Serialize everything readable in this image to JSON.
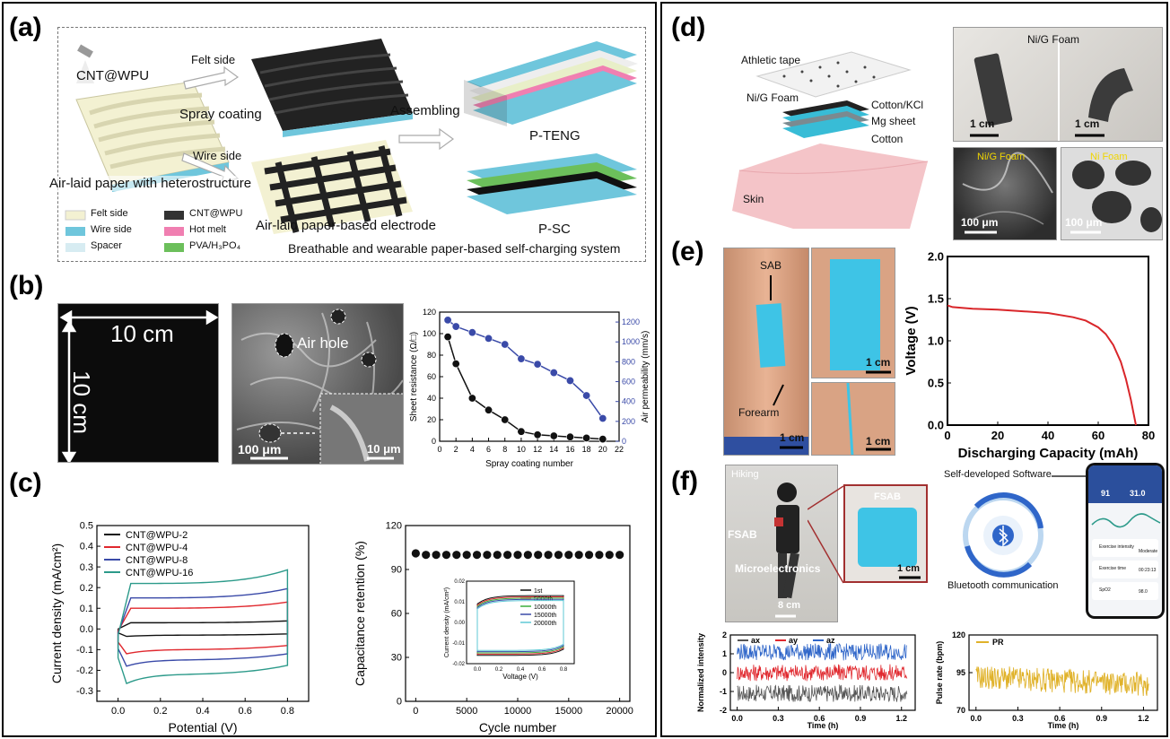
{
  "panels": {
    "a": "(a)",
    "b": "(b)",
    "c": "(c)",
    "d": "(d)",
    "e": "(e)",
    "f": "(f)"
  },
  "a": {
    "cnt_label": "CNT@WPU",
    "felt_side": "Felt side",
    "spray_coating": "Spray coating",
    "wire_side": "Wire side",
    "airlaid_hetero": "Air-laid paper with heterostructure",
    "airlaid_electrode": "Air-laid paper-based electrode",
    "assembling": "Assembling",
    "pteng": "P-TENG",
    "psc": "P-SC",
    "caption": "Breathable and wearable paper-based self-charging system",
    "legend": [
      {
        "label": "Felt side",
        "color": "#f3f1d2"
      },
      {
        "label": "CNT@WPU",
        "color": "#333333"
      },
      {
        "label": "Wire side",
        "color": "#6fc6dc"
      },
      {
        "label": "Hot melt",
        "color": "#f07fb1"
      },
      {
        "label": "Spacer",
        "color": "#d7ecf2"
      },
      {
        "label": "PVA/H₃PO₄",
        "color": "#6cbf5b"
      }
    ]
  },
  "b": {
    "dim_h": "10 cm",
    "dim_v": "10 cm",
    "air_hole": "Air hole",
    "scale_main": "100 μm",
    "scale_inset": "10 μm"
  },
  "d": {
    "athletic_tape": "Athletic tape",
    "nig_foam": "Ni/G Foam",
    "cotton_kcl": "Cotton/KCl",
    "mg_sheet": "Mg sheet",
    "cotton": "Cotton",
    "skin": "Skin",
    "photo_title": "Ni/G Foam",
    "scale_1cm_a": "1 cm",
    "scale_1cm_b": "1 cm",
    "sem_nig": "Ni/G Foam",
    "sem_ni": "Ni Foam",
    "scale_100_a": "100 μm",
    "scale_100_b": "100 μm"
  },
  "e": {
    "sab": "SAB",
    "forearm": "Forearm",
    "scale_a": "1 cm",
    "scale_b": "1 cm",
    "scale_c": "1 cm"
  },
  "f": {
    "hiking": "Hiking",
    "fsab": "FSAB",
    "fsab_zoom": "FSAB",
    "microelectronics": "Microelectronics",
    "scale_8cm": "8 cm",
    "scale_1cm": "1 cm",
    "bluetooth": "Bluetooth communication",
    "software": "Self-developed Software",
    "phone": {
      "hr": "91",
      "temp": "31.0",
      "item1": "Exercise intensity",
      "item1_val": "Moderate",
      "item2": "Exercise time",
      "item2_val": "00:23:13",
      "item3": "SpO2",
      "item3_val": "98.0"
    }
  },
  "chart_data": [
    {
      "id": "b-chart",
      "type": "line",
      "xlabel": "Spray coating number",
      "ylabel": "Sheet resistance (Ω/□)",
      "ylabel2": "Air permeability (mm/s)",
      "xlim": [
        0,
        22
      ],
      "ylim": [
        0,
        120
      ],
      "ylim2": [
        0,
        1300
      ],
      "xticks": [
        0,
        2,
        4,
        6,
        8,
        10,
        12,
        14,
        16,
        18,
        20,
        22
      ],
      "yticks": [
        0,
        20,
        40,
        60,
        80,
        100,
        120
      ],
      "yticks2": [
        0,
        200,
        400,
        600,
        800,
        1000,
        1200
      ],
      "series": [
        {
          "axis": "left",
          "color": "#111111",
          "x": [
            1,
            2,
            4,
            6,
            8,
            10,
            12,
            14,
            16,
            18,
            20
          ],
          "y": [
            97,
            72,
            40,
            29,
            20,
            9,
            6,
            5,
            4,
            3,
            2
          ]
        },
        {
          "axis": "right",
          "color": "#3a4aa8",
          "x": [
            1,
            2,
            4,
            6,
            8,
            10,
            12,
            14,
            16,
            18,
            20
          ],
          "y": [
            1220,
            1155,
            1095,
            1035,
            975,
            830,
            775,
            690,
            610,
            460,
            230
          ]
        }
      ]
    },
    {
      "id": "c-cv",
      "type": "line",
      "xlabel": "Potential (V)",
      "ylabel": "Current density (mA/cm²)",
      "xlim": [
        -0.1,
        0.9
      ],
      "ylim": [
        -0.35,
        0.5
      ],
      "xticks": [
        0.0,
        0.2,
        0.4,
        0.6,
        0.8
      ],
      "yticks": [
        -0.3,
        -0.2,
        -0.1,
        0.0,
        0.1,
        0.2,
        0.3,
        0.4,
        0.5
      ],
      "series": [
        {
          "name": "CNT@WPU-2",
          "color": "#111111",
          "scale": 0.03
        },
        {
          "name": "CNT@WPU-4",
          "color": "#e0282e",
          "scale": 0.1
        },
        {
          "name": "CNT@WPU-8",
          "color": "#3a4aa8",
          "scale": 0.15
        },
        {
          "name": "CNT@WPU-16",
          "color": "#2c9a8a",
          "scale": 0.22
        }
      ]
    },
    {
      "id": "c-retention",
      "type": "scatter",
      "xlabel": "Cycle number",
      "ylabel": "Capacitance retention (%)",
      "xlim": [
        -1000,
        21000
      ],
      "ylim": [
        0,
        120
      ],
      "xticks": [
        0,
        5000,
        10000,
        15000,
        20000
      ],
      "yticks": [
        0,
        30,
        60,
        90,
        120
      ],
      "x": [
        0,
        1000,
        2000,
        3000,
        4000,
        5000,
        6000,
        7000,
        8000,
        9000,
        10000,
        11000,
        12000,
        13000,
        14000,
        15000,
        16000,
        17000,
        18000,
        19000,
        20000
      ],
      "y": [
        101,
        100,
        100,
        100,
        100,
        100,
        100,
        100,
        100,
        100,
        100,
        100,
        100,
        100,
        100,
        100,
        100,
        100,
        100,
        100,
        100
      ],
      "inset": {
        "xlabel": "Voltage (V)",
        "ylabel": "Current density (mA/cm²)",
        "xticks": [
          0.0,
          0.2,
          0.4,
          0.6,
          0.8
        ],
        "yticks": [
          -0.02,
          -0.01,
          0.0,
          0.01,
          0.02
        ],
        "series": [
          {
            "name": "1st",
            "color": "#111111"
          },
          {
            "name": "5000th",
            "color": "#e0282e"
          },
          {
            "name": "10000th",
            "color": "#3aae3a"
          },
          {
            "name": "15000th",
            "color": "#3a4aa8"
          },
          {
            "name": "20000th",
            "color": "#5fc9d6"
          }
        ]
      }
    },
    {
      "id": "e-discharge",
      "type": "line",
      "xlabel": "Discharging Capacity (mAh)",
      "ylabel": "Voltage (V)",
      "xlim": [
        0,
        80
      ],
      "ylim": [
        0,
        2.0
      ],
      "xticks": [
        0,
        20,
        40,
        60,
        80
      ],
      "yticks": [
        0.0,
        0.5,
        1.0,
        1.5,
        2.0
      ],
      "series": [
        {
          "color": "#d9262a",
          "x": [
            0,
            2,
            10,
            20,
            30,
            40,
            50,
            55,
            60,
            63,
            66,
            69,
            71,
            73,
            74,
            75
          ],
          "y": [
            1.42,
            1.4,
            1.38,
            1.37,
            1.35,
            1.33,
            1.28,
            1.24,
            1.16,
            1.08,
            0.95,
            0.75,
            0.55,
            0.3,
            0.15,
            0.0
          ]
        }
      ]
    },
    {
      "id": "f-accel",
      "type": "line",
      "xlabel": "Time (h)",
      "ylabel": "Normalized intensity",
      "xlim": [
        -0.05,
        1.3
      ],
      "ylim": [
        -2,
        2
      ],
      "xticks": [
        0.0,
        0.3,
        0.6,
        0.9,
        1.2
      ],
      "yticks": [
        -2,
        -1,
        0,
        1,
        2
      ],
      "series": [
        {
          "name": "ax",
          "color": "#555555",
          "center": -1.1
        },
        {
          "name": "ay",
          "color": "#e0282e",
          "center": 0.0
        },
        {
          "name": "az",
          "color": "#2f66c9",
          "center": 1.1
        }
      ]
    },
    {
      "id": "f-pulse",
      "type": "line",
      "xlabel": "Time (h)",
      "ylabel": "Pulse rate (bpm)",
      "xlim": [
        -0.05,
        1.3
      ],
      "ylim": [
        70,
        120
      ],
      "xticks": [
        0.0,
        0.3,
        0.6,
        0.9,
        1.2
      ],
      "yticks": [
        70,
        95,
        120
      ],
      "series": [
        {
          "name": "PR",
          "color": "#e0b22a",
          "center": 92
        }
      ]
    }
  ]
}
